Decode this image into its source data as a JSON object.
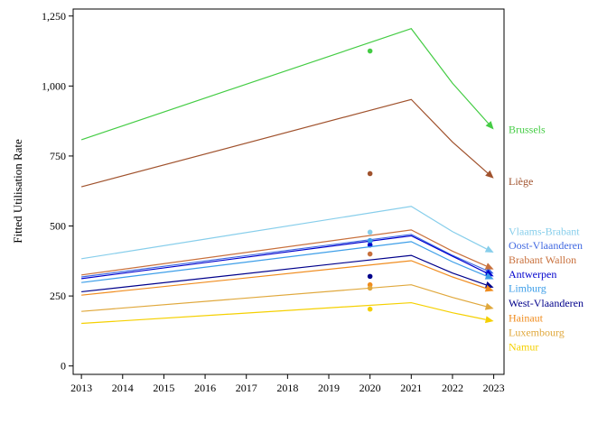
{
  "chart_data": {
    "type": "line",
    "title": "",
    "xlabel": "",
    "ylabel": "Fitted Utilisation Rate",
    "x": [
      2013,
      2014,
      2015,
      2016,
      2017,
      2018,
      2019,
      2020,
      2021,
      2022,
      2023
    ],
    "x_ticks": [
      "2013",
      "2014",
      "2015",
      "2016",
      "2017",
      "2018",
      "2019",
      "2020",
      "2021",
      "2022",
      "2023"
    ],
    "y_ticks": [
      0,
      250,
      500,
      750,
      1000,
      1250
    ],
    "y_tick_labels": [
      "0",
      "250",
      "500",
      "750",
      "1,000",
      "1,250"
    ],
    "ylim": [
      -30,
      1275
    ],
    "xlim": [
      2012.8,
      2023.25
    ],
    "grid": false,
    "legend": "end-of-line labels on the right",
    "series": [
      {
        "name": "Brussels",
        "color": "#44cc44",
        "x": [
          2013,
          2021,
          2022,
          2023
        ],
        "values": [
          808,
          1205,
          1010,
          845
        ],
        "observed": {
          "x": 2020,
          "y": 1125
        },
        "label_y": 845
      },
      {
        "name": "Liège",
        "color": "#a0522d",
        "x": [
          2013,
          2021,
          2022,
          2023
        ],
        "values": [
          640,
          952,
          800,
          670
        ],
        "observed": {
          "x": 2020,
          "y": 687
        },
        "label_y": 660
      },
      {
        "name": "Vlaams-Brabant",
        "color": "#87ceeb",
        "x": [
          2013,
          2021,
          2022,
          2023
        ],
        "values": [
          383,
          570,
          480,
          405
        ],
        "observed": {
          "x": 2020,
          "y": 478
        },
        "label_y": 480
      },
      {
        "name": "Oost-Vlaanderen",
        "color": "#4169e1",
        "x": [
          2013,
          2021,
          2022,
          2023
        ],
        "values": [
          318,
          470,
          395,
          330
        ],
        "observed": {
          "x": 2020,
          "y": 445
        },
        "label_y": 430
      },
      {
        "name": "Brabant Wallon",
        "color": "#c8703c",
        "x": [
          2013,
          2021,
          2022,
          2023
        ],
        "values": [
          325,
          486,
          410,
          345
        ],
        "observed": {
          "x": 2020,
          "y": 400
        },
        "label_y": 380
      },
      {
        "name": "Antwerpen",
        "color": "#0000cd",
        "x": [
          2013,
          2021,
          2022,
          2023
        ],
        "values": [
          312,
          465,
          392,
          320
        ],
        "observed": {
          "x": 2020,
          "y": 432
        },
        "label_y": 328
      },
      {
        "name": "Limburg",
        "color": "#3c9ee8",
        "x": [
          2013,
          2021,
          2022,
          2023
        ],
        "values": [
          298,
          444,
          372,
          310
        ],
        "observed": {
          "x": 2020,
          "y": 448
        },
        "label_y": 278
      },
      {
        "name": "West-Vlaanderen",
        "color": "#00008b",
        "x": [
          2013,
          2021,
          2022,
          2023
        ],
        "values": [
          265,
          395,
          332,
          280
        ],
        "observed": {
          "x": 2020,
          "y": 320
        },
        "label_y": 225
      },
      {
        "name": "Hainaut",
        "color": "#f08c1e",
        "x": [
          2013,
          2021,
          2022,
          2023
        ],
        "values": [
          253,
          376,
          318,
          268
        ],
        "observed": {
          "x": 2020,
          "y": 290
        },
        "label_y": 172
      },
      {
        "name": "Luxembourg",
        "color": "#e0a83c",
        "x": [
          2013,
          2021,
          2022,
          2023
        ],
        "values": [
          195,
          290,
          245,
          205
        ],
        "observed": {
          "x": 2020,
          "y": 278
        },
        "label_y": 120
      },
      {
        "name": "Namur",
        "color": "#f5d000",
        "x": [
          2013,
          2021,
          2022,
          2023
        ],
        "values": [
          152,
          226,
          190,
          160
        ],
        "observed": {
          "x": 2020,
          "y": 203
        },
        "label_y": 68
      }
    ]
  }
}
